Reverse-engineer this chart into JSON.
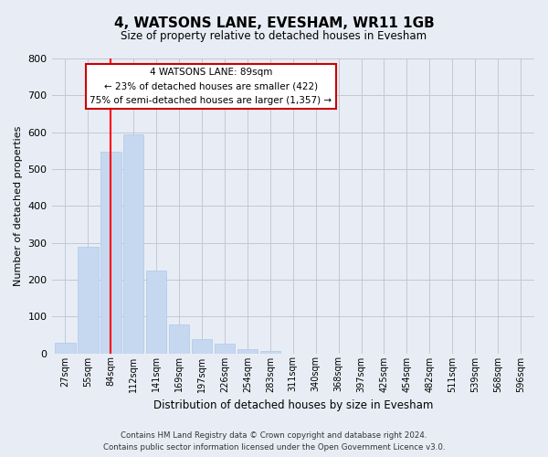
{
  "title": "4, WATSONS LANE, EVESHAM, WR11 1GB",
  "subtitle": "Size of property relative to detached houses in Evesham",
  "xlabel": "Distribution of detached houses by size in Evesham",
  "ylabel": "Number of detached properties",
  "bar_labels": [
    "27sqm",
    "55sqm",
    "84sqm",
    "112sqm",
    "141sqm",
    "169sqm",
    "197sqm",
    "226sqm",
    "254sqm",
    "283sqm",
    "311sqm",
    "340sqm",
    "368sqm",
    "397sqm",
    "425sqm",
    "454sqm",
    "482sqm",
    "511sqm",
    "539sqm",
    "568sqm",
    "596sqm"
  ],
  "bar_heights": [
    28,
    290,
    548,
    595,
    225,
    78,
    38,
    25,
    12,
    5,
    0,
    0,
    0,
    0,
    0,
    0,
    0,
    0,
    0,
    0,
    0
  ],
  "bar_color": "#c5d8f0",
  "bar_edge_color": "#b0c8e8",
  "vline_x": 2,
  "vline_color": "red",
  "ylim": [
    0,
    800
  ],
  "yticks": [
    0,
    100,
    200,
    300,
    400,
    500,
    600,
    700,
    800
  ],
  "annotation_line1": "4 WATSONS LANE: 89sqm",
  "annotation_line2": "← 23% of detached houses are smaller (422)",
  "annotation_line3": "75% of semi-detached houses are larger (1,357) →",
  "footer_line1": "Contains HM Land Registry data © Crown copyright and database right 2024.",
  "footer_line2": "Contains public sector information licensed under the Open Government Licence v3.0.",
  "bg_color": "#e8edf5",
  "plot_bg_color": "#e8edf5",
  "grid_color": "#c0c8d8"
}
